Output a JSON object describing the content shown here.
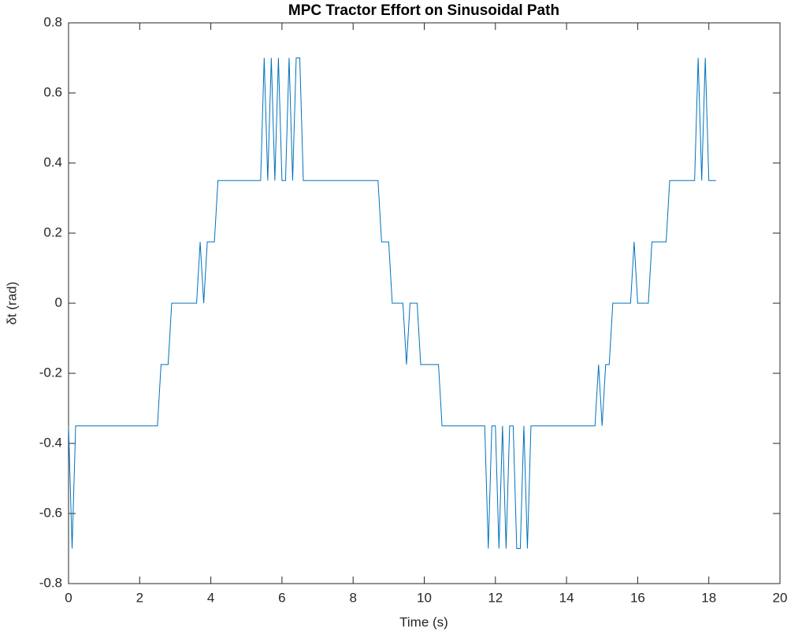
{
  "chart_data": {
    "type": "line",
    "title": "MPC Tractor Effort on Sinusoidal Path",
    "xlabel": "Time (s)",
    "ylabel": "δt (rad)",
    "series": [
      {
        "color": "#0072bd",
        "x": [
          0,
          0.1,
          0.2,
          2.5,
          2.6,
          2.8,
          2.9,
          3.6,
          3.7,
          3.8,
          3.9,
          4.1,
          4.2,
          5.4,
          5.5,
          5.6,
          5.7,
          5.8,
          5.9,
          6.0,
          6.1,
          6.2,
          6.3,
          6.4,
          6.5,
          6.6,
          8.7,
          8.8,
          9.0,
          9.1,
          9.2,
          9.4,
          9.5,
          9.6,
          9.8,
          9.9,
          10.4,
          10.5,
          11.7,
          11.8,
          11.9,
          12.0,
          12.1,
          12.2,
          12.3,
          12.4,
          12.5,
          12.6,
          12.7,
          12.8,
          12.9,
          13.0,
          14.8,
          14.9,
          15.0,
          15.1,
          15.2,
          15.3,
          15.8,
          15.9,
          16.0,
          16.3,
          16.4,
          16.8,
          16.9,
          17.6,
          17.7,
          17.8,
          17.9,
          18.0,
          18.2
        ],
        "values": [
          -0.35,
          -0.7,
          -0.35,
          -0.35,
          -0.175,
          -0.175,
          0,
          0,
          0.175,
          0,
          0.175,
          0.175,
          0.35,
          0.35,
          0.7,
          0.35,
          0.7,
          0.35,
          0.7,
          0.35,
          0.35,
          0.7,
          0.35,
          0.7,
          0.7,
          0.35,
          0.35,
          0.175,
          0.175,
          0,
          0,
          0,
          -0.175,
          0,
          0,
          -0.175,
          -0.175,
          -0.35,
          -0.35,
          -0.7,
          -0.35,
          -0.35,
          -0.7,
          -0.35,
          -0.7,
          -0.35,
          -0.35,
          -0.7,
          -0.7,
          -0.35,
          -0.7,
          -0.35,
          -0.35,
          -0.175,
          -0.35,
          -0.175,
          -0.175,
          0,
          0,
          0.175,
          0,
          0,
          0.175,
          0.175,
          0.35,
          0.35,
          0.7,
          0.35,
          0.7,
          0.35,
          0.35
        ]
      }
    ],
    "xlim": [
      0,
      20
    ],
    "xticks": [
      0,
      2,
      4,
      6,
      8,
      10,
      12,
      14,
      16,
      18,
      20
    ],
    "ylim": [
      -0.8,
      0.8
    ],
    "yticks": [
      -0.8,
      -0.6,
      -0.4,
      -0.2,
      0,
      0.2,
      0.4,
      0.6,
      0.8
    ],
    "grid": false
  }
}
